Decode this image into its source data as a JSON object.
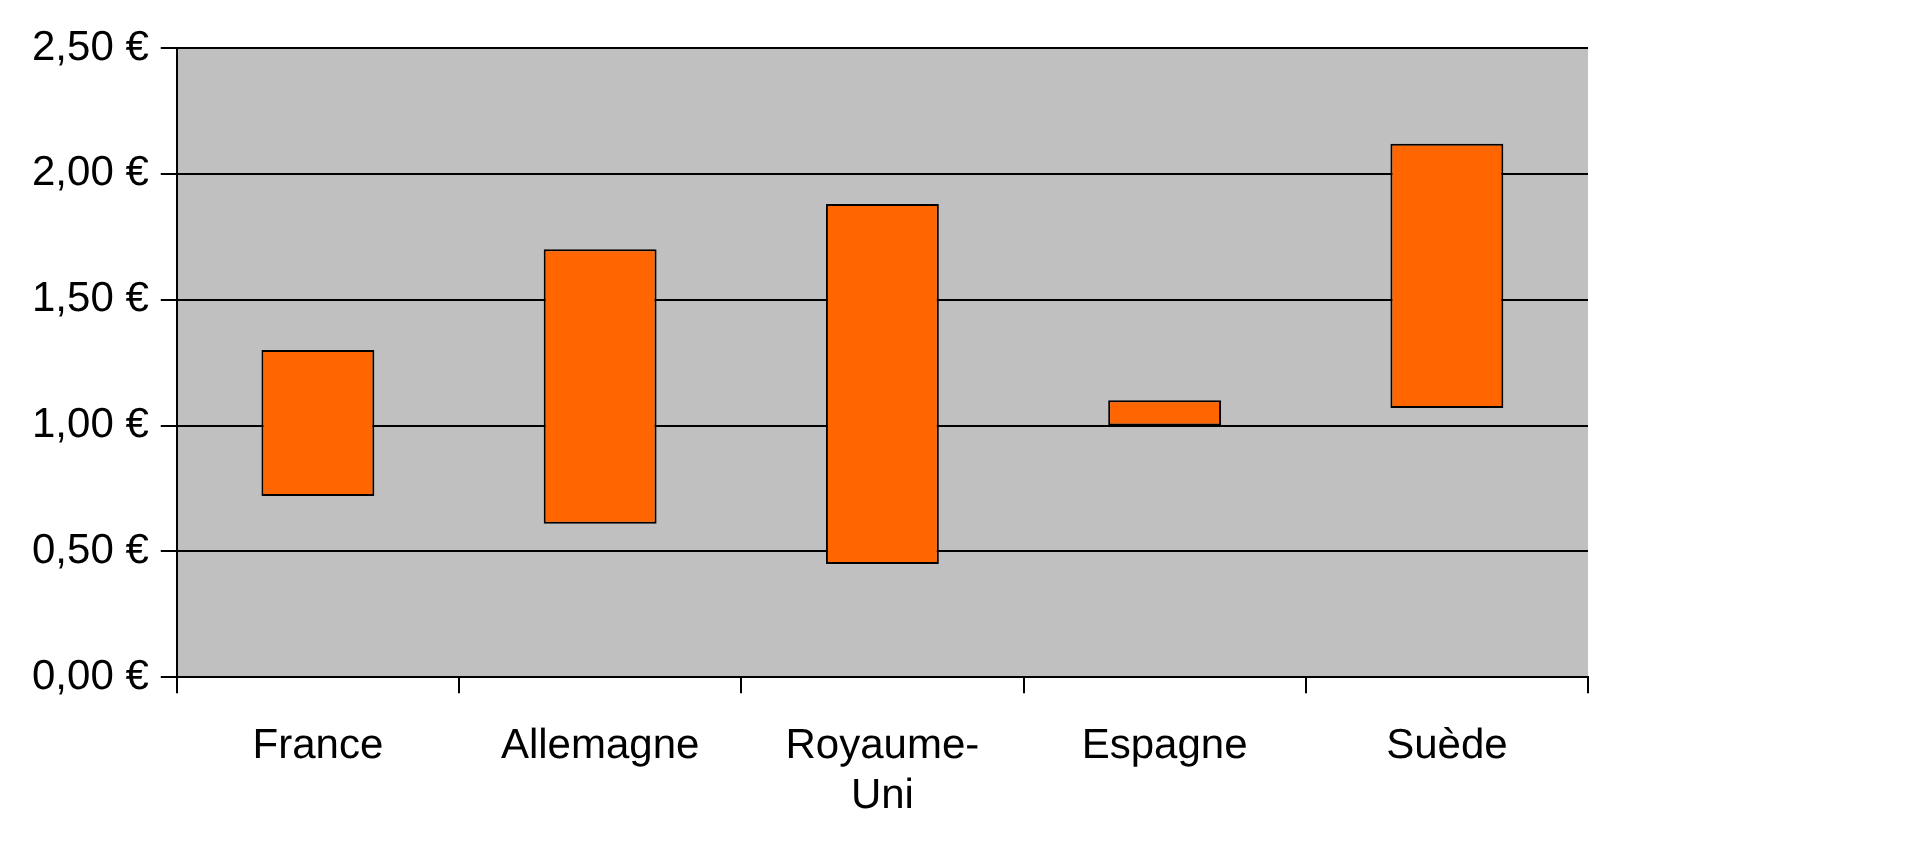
{
  "chart_data": {
    "type": "bar",
    "categories": [
      "France",
      "Allemagne",
      "Royaume-Uni",
      "Espagne",
      "Suède"
    ],
    "base": [
      0.72,
      0.61,
      0.45,
      1.0,
      1.07
    ],
    "values": [
      0.58,
      1.09,
      1.43,
      0.1,
      1.05
    ],
    "color": "#ff6600",
    "ylim": [
      0,
      2.5
    ],
    "yticks": [
      {
        "value": 0,
        "label": "0,00 €"
      },
      {
        "value": 0.5,
        "label": "0,50 €"
      },
      {
        "value": 1,
        "label": "1,00 €"
      },
      {
        "value": 1.5,
        "label": "1,50 €"
      },
      {
        "value": 2,
        "label": "2,00 €"
      },
      {
        "value": 2.5,
        "label": "2,50 €"
      }
    ],
    "grid": "y",
    "legend": false
  }
}
